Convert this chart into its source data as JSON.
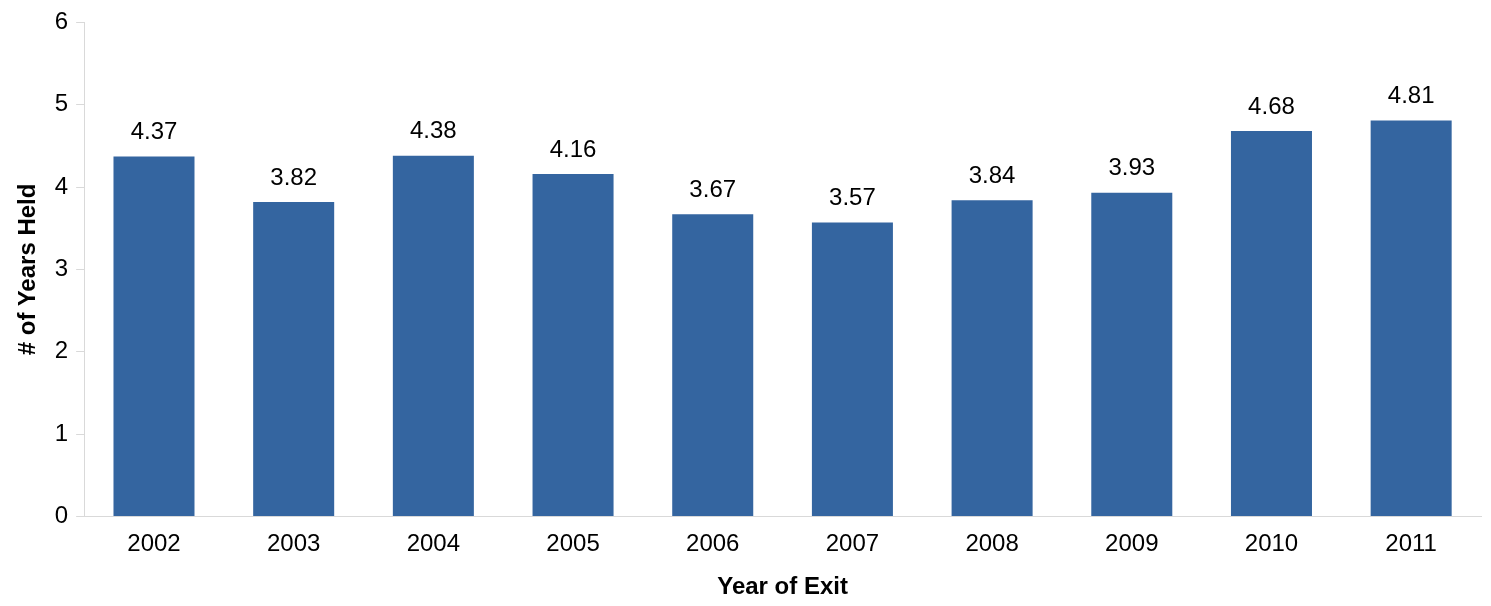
{
  "chart_data": {
    "type": "bar",
    "xlabel": "Year of Exit",
    "ylabel": "# of Years Held",
    "categories": [
      "2002",
      "2003",
      "2004",
      "2005",
      "2006",
      "2007",
      "2008",
      "2009",
      "2010",
      "2011"
    ],
    "values": [
      4.37,
      3.82,
      4.38,
      4.16,
      3.67,
      3.57,
      3.84,
      3.93,
      4.68,
      4.81
    ],
    "color": "#3465a0",
    "ylim": [
      0,
      6
    ],
    "yticks": [
      0,
      1,
      2,
      3,
      4,
      5,
      6
    ],
    "grid": false,
    "legend": false,
    "data_labels": true
  }
}
